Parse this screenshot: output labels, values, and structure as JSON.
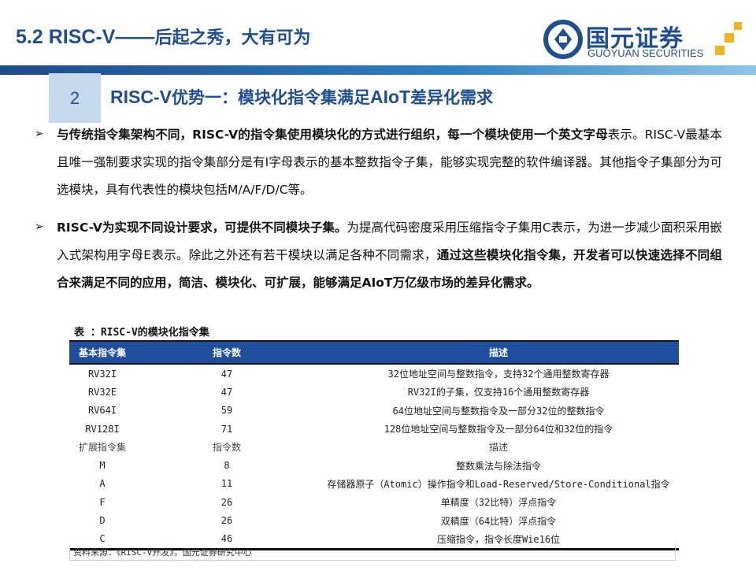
{
  "header": {
    "title_prefix": "5.2 RISC-V——",
    "title_cn": "后起之秀，大有可为"
  },
  "logo": {
    "cn": "国元证券",
    "en": "GUOYUAN SECURITIES"
  },
  "section": {
    "number": "2",
    "heading_prefix": "RISC-V",
    "heading_cn1": "优势一：模块化指令集满足",
    "heading_mid": "AIoT",
    "heading_cn2": "差异化需求"
  },
  "bullets": [
    {
      "bold": "与传统指令集架构不同，RISC-V的指令集使用模块化的方式进行组织，每一个模块使用一个英文字母",
      "normal": "表示。RISC-V最基本且唯一强制要求实现的指令集部分是有I字母表示的基本整数指令子集，能够实现完整的软件编译器。其他指令子集部分为可选模块，具有代表性的模块包括M/A/F/D/C等。"
    },
    {
      "bold": "RISC-V为实现不同设计要求，可提供不同模块子集。",
      "normal": "为提高代码密度采用压缩指令子集用C表示，为进一步减少面积采用嵌入式架构用字母E表示。除此之外还有若干模块以满足各种不同需求，",
      "bold2": "通过这些模块化指令集，开发者可以快速选择不同组合来满足不同的应用，简洁、模块化、可扩展，能够满足AIoT万亿级市场的差异化需求。"
    }
  ],
  "table": {
    "caption": "表 ：RISC-V的模块化指令集",
    "headers": [
      "基本指令集",
      "指令数",
      "描述"
    ],
    "rows": [
      [
        "RV32I",
        "47",
        "32位地址空间与整数指令，支持32个通用整数寄存器"
      ],
      [
        "RV32E",
        "47",
        "RV32I的子集，仅支持16个通用整数寄存器"
      ],
      [
        "RV64I",
        "59",
        "64位地址空间与整数指令及一部分32位的整数指令"
      ],
      [
        "RV128I",
        "71",
        "128位地址空间与整数指令及一部分64位和32位的指令"
      ],
      [
        "扩展指令集",
        "指令数",
        "描述"
      ],
      [
        "M",
        "8",
        "整数乘法与除法指令"
      ],
      [
        "A",
        "11",
        "存储器原子（Atomic）操作指令和Load-Reserved/Store-Conditional指令"
      ],
      [
        "F",
        "26",
        "单精度（32比特）浮点指令"
      ],
      [
        "D",
        "26",
        "双精度（64比特）浮点指令"
      ],
      [
        "C",
        "46",
        "压缩指令，指令长度Wie16位"
      ]
    ],
    "source": "资料来源：《RISC-V开发》，国元证券研究中心"
  },
  "colors": {
    "brand_blue": "#1f4f8f",
    "table_header": "#1f4f9c",
    "logo_gold": "#f0b323"
  }
}
